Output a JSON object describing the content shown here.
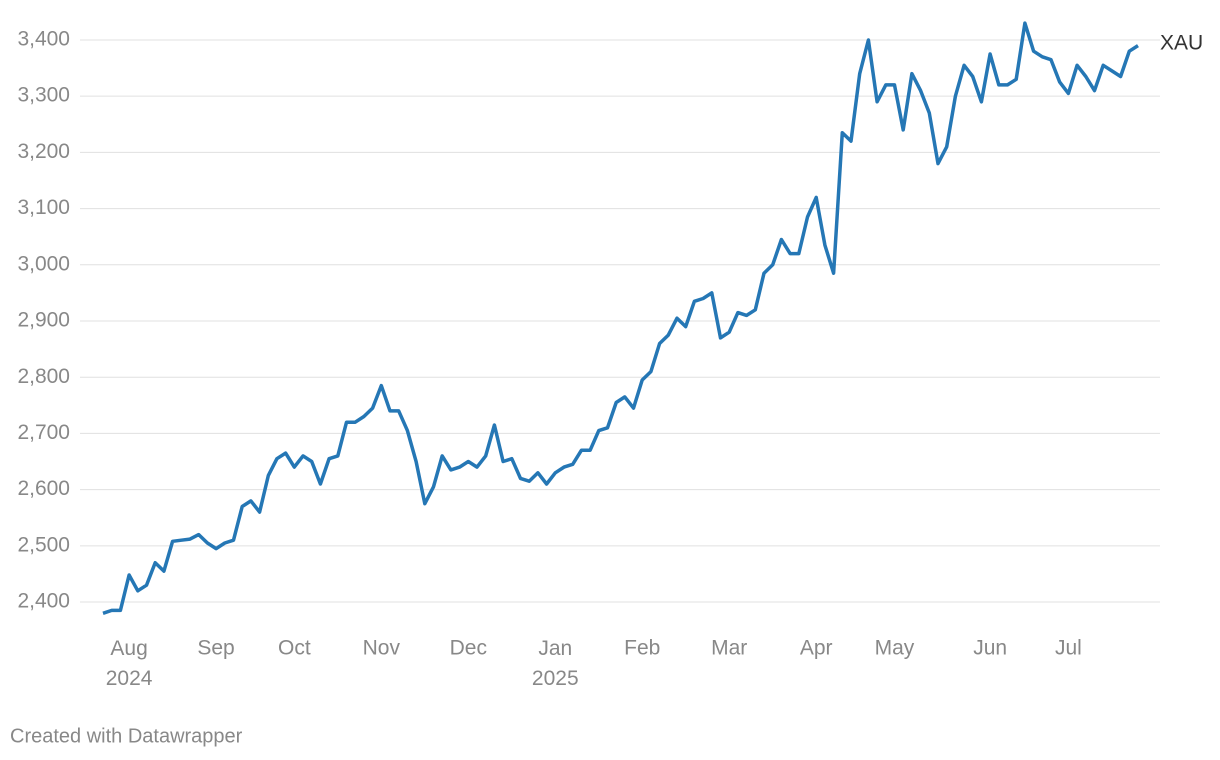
{
  "chart_data": {
    "type": "line",
    "categories": [
      null,
      null,
      null,
      "Aug 2024",
      null,
      null,
      null,
      null,
      null,
      null,
      null,
      null,
      null,
      "Sep",
      null,
      null,
      null,
      null,
      null,
      null,
      null,
      null,
      "Oct",
      null,
      null,
      null,
      null,
      null,
      null,
      null,
      null,
      null,
      "Nov",
      null,
      null,
      null,
      null,
      null,
      null,
      null,
      null,
      null,
      "Dec",
      null,
      null,
      null,
      null,
      null,
      null,
      null,
      null,
      null,
      "Jan 2025",
      null,
      null,
      null,
      null,
      null,
      null,
      null,
      null,
      null,
      "Feb",
      null,
      null,
      null,
      null,
      null,
      null,
      null,
      null,
      null,
      "Mar",
      null,
      null,
      null,
      null,
      null,
      null,
      null,
      null,
      null,
      "Apr",
      null,
      null,
      null,
      null,
      null,
      null,
      null,
      null,
      "May",
      null,
      null,
      null,
      null,
      null,
      null,
      null,
      null,
      null,
      null,
      "Jun",
      null,
      null,
      null,
      null,
      null,
      null,
      null,
      null,
      "Jul",
      null,
      null,
      null,
      null,
      null,
      null,
      null,
      null
    ],
    "series": [
      {
        "name": "XAU",
        "color": "#2577b5",
        "values": [
          2380,
          2385,
          2385,
          2448,
          2420,
          2430,
          2470,
          2455,
          2508,
          2510,
          2512,
          2520,
          2505,
          2495,
          2505,
          2510,
          2570,
          2580,
          2560,
          2625,
          2655,
          2665,
          2640,
          2660,
          2650,
          2610,
          2655,
          2660,
          2720,
          2720,
          2730,
          2745,
          2785,
          2740,
          2740,
          2705,
          2650,
          2575,
          2605,
          2660,
          2635,
          2640,
          2650,
          2640,
          2660,
          2715,
          2650,
          2655,
          2620,
          2615,
          2630,
          2610,
          2630,
          2640,
          2645,
          2670,
          2670,
          2705,
          2710,
          2755,
          2765,
          2745,
          2795,
          2810,
          2860,
          2875,
          2905,
          2890,
          2935,
          2940,
          2950,
          2870,
          2880,
          2915,
          2910,
          2920,
          2985,
          3000,
          3045,
          3020,
          3020,
          3085,
          3120,
          3035,
          2985,
          3235,
          3220,
          3340,
          3400,
          3290,
          3320,
          3320,
          3240,
          3340,
          3310,
          3270,
          3180,
          3210,
          3300,
          3355,
          3335,
          3290,
          3375,
          3320,
          3320,
          3330,
          3430,
          3380,
          3370,
          3365,
          3325,
          3305,
          3355,
          3335,
          3310,
          3355,
          3345,
          3335,
          3380,
          3390
        ]
      }
    ],
    "ylim": [
      2360,
      3440
    ],
    "yticks": [
      {
        "value": 2400,
        "label": "2,400"
      },
      {
        "value": 2500,
        "label": "2,500"
      },
      {
        "value": 2600,
        "label": "2,600"
      },
      {
        "value": 2700,
        "label": "2,700"
      },
      {
        "value": 2800,
        "label": "2,800"
      },
      {
        "value": 2900,
        "label": "2,900"
      },
      {
        "value": 3000,
        "label": "3,000"
      },
      {
        "value": 3100,
        "label": "3,100"
      },
      {
        "value": 3200,
        "label": "3,200"
      },
      {
        "value": 3300,
        "label": "3,300"
      },
      {
        "value": 3400,
        "label": "3,400"
      }
    ],
    "grid": true,
    "credit": "Created with Datawrapper"
  }
}
